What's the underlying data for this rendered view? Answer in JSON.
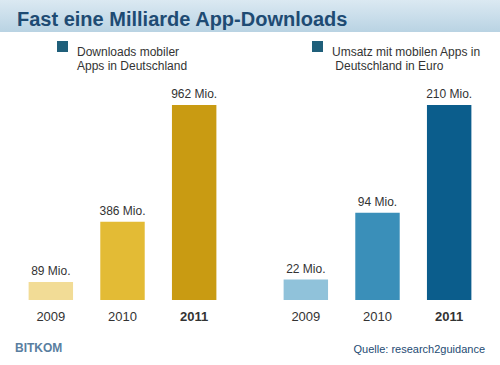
{
  "title": "Fast eine Milliarde App-Downloads",
  "source": "Quelle: research2guidance",
  "logo": "BITKOM",
  "chart_data": [
    {
      "type": "bar",
      "title": "Downloads mobiler Apps in Deutschland",
      "categories": [
        "2009",
        "2010",
        "2011"
      ],
      "values": [
        89,
        386,
        962
      ],
      "value_labels": [
        "89 Mio.",
        "386 Mio.",
        "962 Mio."
      ],
      "colors": [
        "#f2dc96",
        "#e3bb35",
        "#c99b12"
      ],
      "ylim": [
        0,
        962
      ],
      "grid": false,
      "data_labels": true,
      "tick_labels": "x"
    },
    {
      "type": "bar",
      "title": "Umsatz mit mobilen Apps in Deutschland in Euro",
      "categories": [
        "2009",
        "2010",
        "2011"
      ],
      "values": [
        22,
        94,
        210
      ],
      "value_labels": [
        "22 Mio.",
        "94 Mio.",
        "210 Mio."
      ],
      "colors": [
        "#90c2da",
        "#3a8fb9",
        "#0b5d8c"
      ],
      "ylim": [
        0,
        210
      ],
      "grid": false,
      "data_labels": true,
      "tick_labels": "x"
    }
  ]
}
